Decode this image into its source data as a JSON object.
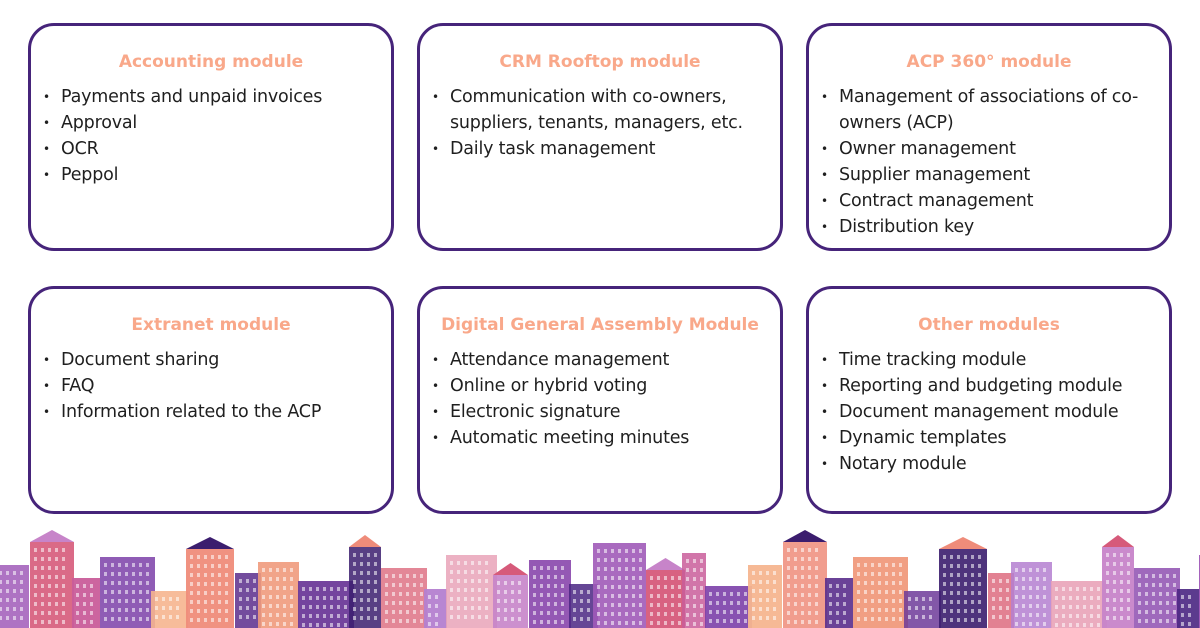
{
  "modules": [
    {
      "title": "Accounting module",
      "items": [
        "Payments and unpaid invoices",
        "Approval",
        "OCR",
        "Peppol"
      ]
    },
    {
      "title": "CRM Rooftop module",
      "items": [
        "Communication with co-owners, suppliers, tenants, managers, etc.",
        "Daily task management"
      ]
    },
    {
      "title": "ACP 360° module",
      "items": [
        "Management of associations of co-owners (ACP)",
        "Owner management",
        "Supplier management",
        "Contract management",
        "Distribution key"
      ]
    },
    {
      "title": "Extranet module",
      "items": [
        "Document sharing",
        "FAQ",
        "Information related to the ACP"
      ]
    },
    {
      "title": "Digital General Assembly Module",
      "items": [
        "Attendance management",
        "Online or hybrid voting",
        "Electronic signature",
        "Automatic meeting minutes"
      ]
    },
    {
      "title": "Other modules",
      "items": [
        "Time tracking module",
        "Reporting and budgeting module",
        "Document management module",
        "Dynamic templates",
        "Notary module"
      ]
    }
  ],
  "colors": {
    "border": "#46247a",
    "title": "#f9a88a",
    "text": "#1f1f1f"
  },
  "decoration": {
    "skyline": "colorful-city-skyline-illustration"
  }
}
